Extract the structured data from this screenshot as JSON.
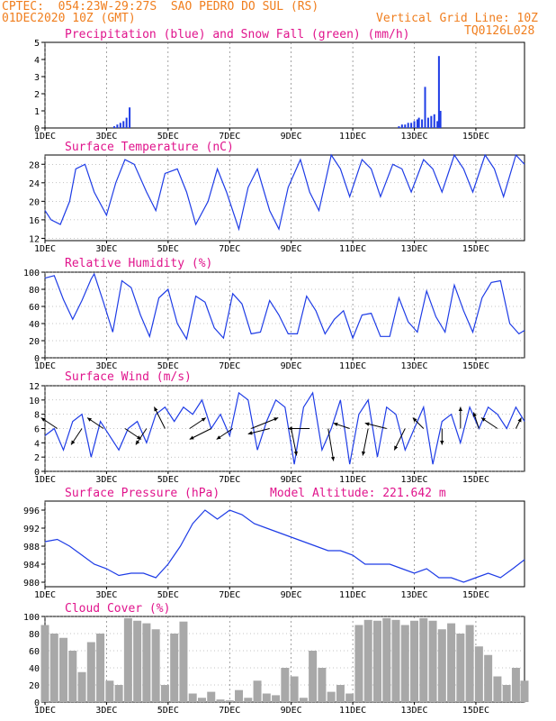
{
  "header": {
    "line1": "CPTEC:  054:23W-29:27S  SAO PEDRO DO SUL (RS)",
    "line2": "01DEC2020 10Z (GMT)",
    "grid_note": "Vertical Grid Line: 10Z",
    "code": "TQ0126L028"
  },
  "x_ticks": [
    "1DEC",
    "3DEC",
    "5DEC",
    "7DEC",
    "9DEC",
    "11DEC",
    "13DEC",
    "15DEC"
  ],
  "x_day_offsets": [
    0,
    2,
    4,
    6,
    8,
    10,
    12,
    14
  ],
  "x_range_days": [
    0,
    15.58
  ],
  "colors": {
    "line": "#1e3ce6",
    "precip": "#1e3ce6",
    "snow": "#00b400",
    "cloud": "#a8a8a8",
    "wind": "#000000",
    "title": "#e0148c",
    "header": "#f07e1e"
  },
  "chart_data": [
    {
      "type": "bar",
      "title": "Precipitation (blue) and Snow Fall (green) (mm/h)",
      "ylim": [
        0,
        5
      ],
      "yticks": [
        0,
        1,
        2,
        3,
        4,
        5
      ],
      "series": [
        {
          "name": "Precipitation",
          "x": [
            2.25,
            2.35,
            2.45,
            2.55,
            2.65,
            2.75,
            11.5,
            11.6,
            11.7,
            11.8,
            11.9,
            12.0,
            12.1,
            12.15,
            12.25,
            12.35,
            12.45,
            12.55,
            12.65,
            12.75,
            12.8,
            12.85
          ],
          "values": [
            0.1,
            0.2,
            0.3,
            0.4,
            0.6,
            1.2,
            0.1,
            0.2,
            0.2,
            0.3,
            0.3,
            0.4,
            0.5,
            0.6,
            0.5,
            2.4,
            0.6,
            0.7,
            0.8,
            0.4,
            4.2,
            1.0
          ]
        },
        {
          "name": "Snow Fall",
          "x": [],
          "values": []
        }
      ]
    },
    {
      "type": "line",
      "title": "Surface Temperature (nC)",
      "ylim": [
        11.5,
        30
      ],
      "yticks": [
        12,
        16,
        20,
        24,
        28
      ],
      "series": [
        {
          "x": [
            0,
            0.2,
            0.5,
            0.8,
            1.0,
            1.3,
            1.6,
            2.0,
            2.3,
            2.6,
            2.9,
            3.3,
            3.6,
            3.9,
            4.3,
            4.6,
            4.9,
            5.3,
            5.6,
            5.9,
            6.3,
            6.6,
            6.9,
            7.3,
            7.6,
            7.9,
            8.3,
            8.6,
            8.9,
            9.3,
            9.6,
            9.9,
            10.3,
            10.6,
            10.9,
            11.3,
            11.6,
            11.9,
            12.3,
            12.6,
            12.9,
            13.3,
            13.6,
            13.9,
            14.3,
            14.6,
            14.9,
            15.3,
            15.58
          ],
          "y": [
            18,
            16,
            15,
            20,
            27,
            28,
            22,
            17,
            24,
            29,
            28,
            22,
            18,
            26,
            27,
            22,
            15,
            20,
            27,
            22,
            14,
            23,
            27,
            18,
            14,
            23,
            29,
            22,
            18,
            30,
            27,
            21,
            29,
            27,
            21,
            28,
            27,
            22,
            29,
            27,
            22,
            30,
            27,
            22,
            30,
            27,
            21,
            30,
            28
          ]
        }
      ]
    },
    {
      "type": "line",
      "title": "Relative Humidity (%)",
      "ylim": [
        0,
        100
      ],
      "yticks": [
        0,
        20,
        40,
        60,
        80,
        100
      ],
      "series": [
        {
          "x": [
            0,
            0.3,
            0.6,
            0.9,
            1.2,
            1.5,
            1.6,
            1.9,
            2.2,
            2.5,
            2.8,
            3.1,
            3.4,
            3.7,
            4.0,
            4.3,
            4.6,
            4.9,
            5.2,
            5.5,
            5.8,
            6.1,
            6.4,
            6.7,
            7.0,
            7.3,
            7.6,
            7.9,
            8.2,
            8.5,
            8.8,
            9.1,
            9.4,
            9.7,
            10.0,
            10.3,
            10.6,
            10.9,
            11.2,
            11.5,
            11.8,
            12.1,
            12.4,
            12.7,
            13.0,
            13.3,
            13.6,
            13.9,
            14.2,
            14.5,
            14.8,
            15.1,
            15.4,
            15.58
          ],
          "y": [
            93,
            96,
            68,
            45,
            67,
            92,
            98,
            65,
            30,
            90,
            82,
            50,
            25,
            70,
            80,
            40,
            22,
            72,
            65,
            35,
            23,
            75,
            63,
            28,
            30,
            67,
            50,
            28,
            28,
            72,
            55,
            28,
            45,
            55,
            23,
            50,
            52,
            25,
            25,
            70,
            42,
            30,
            78,
            48,
            30,
            85,
            55,
            30,
            70,
            88,
            90,
            40,
            28,
            32
          ]
        }
      ]
    },
    {
      "type": "line",
      "title": "Surface Wind (m/s)",
      "ylim": [
        0,
        12
      ],
      "yticks": [
        0,
        2,
        4,
        6,
        8,
        10,
        12
      ],
      "series": [
        {
          "x": [
            0,
            0.3,
            0.6,
            0.9,
            1.2,
            1.5,
            1.8,
            2.1,
            2.4,
            2.7,
            3.0,
            3.3,
            3.6,
            3.9,
            4.2,
            4.5,
            4.8,
            5.1,
            5.4,
            5.7,
            6.0,
            6.3,
            6.6,
            6.9,
            7.2,
            7.5,
            7.8,
            8.1,
            8.4,
            8.7,
            9.0,
            9.3,
            9.6,
            9.9,
            10.2,
            10.5,
            10.8,
            11.1,
            11.4,
            11.7,
            12.0,
            12.3,
            12.6,
            12.9,
            13.2,
            13.5,
            13.8,
            14.1,
            14.4,
            14.7,
            15.0,
            15.3,
            15.58
          ],
          "y": [
            5,
            6,
            3,
            7,
            8,
            2,
            7,
            5,
            3,
            6,
            7,
            4,
            8,
            9,
            7,
            9,
            8,
            10,
            6,
            8,
            5,
            11,
            10,
            3,
            7,
            10,
            9,
            1,
            9,
            11,
            3,
            6,
            10,
            1,
            8,
            10,
            2,
            9,
            8,
            3,
            6,
            9,
            1,
            7,
            8,
            4,
            9,
            6,
            9,
            8,
            6,
            9,
            7
          ]
        }
      ],
      "arrows": [
        {
          "x": 0.4,
          "u": -3,
          "v": 2
        },
        {
          "x": 1.2,
          "u": -2,
          "v": -3
        },
        {
          "x": 1.9,
          "u": -3,
          "v": 2
        },
        {
          "x": 2.6,
          "u": 3,
          "v": -2
        },
        {
          "x": 3.3,
          "u": -2,
          "v": -3
        },
        {
          "x": 3.9,
          "u": -2,
          "v": 4
        },
        {
          "x": 4.7,
          "u": 3,
          "v": 2
        },
        {
          "x": 5.4,
          "u": -4,
          "v": -2
        },
        {
          "x": 6.1,
          "u": -3,
          "v": -2
        },
        {
          "x": 6.7,
          "u": 5,
          "v": 2
        },
        {
          "x": 7.3,
          "u": -4,
          "v": -1
        },
        {
          "x": 8.0,
          "u": 1,
          "v": -5
        },
        {
          "x": 8.6,
          "u": -4,
          "v": 0
        },
        {
          "x": 9.2,
          "u": 1,
          "v": -6
        },
        {
          "x": 9.9,
          "u": -3,
          "v": 1
        },
        {
          "x": 10.5,
          "u": -1,
          "v": -5
        },
        {
          "x": 11.1,
          "u": -4,
          "v": 1
        },
        {
          "x": 11.7,
          "u": -2,
          "v": -4
        },
        {
          "x": 12.3,
          "u": -2,
          "v": 2
        },
        {
          "x": 12.9,
          "u": 0,
          "v": -3
        },
        {
          "x": 13.5,
          "u": 0,
          "v": 4
        },
        {
          "x": 14.1,
          "u": -1,
          "v": 3
        },
        {
          "x": 14.7,
          "u": -3,
          "v": 2
        },
        {
          "x": 15.3,
          "u": 1,
          "v": 2
        }
      ]
    },
    {
      "type": "line",
      "title": "Surface Pressure (hPa)",
      "annotation": "Model Altitude: 221.642 m",
      "ylim": [
        979,
        998
      ],
      "yticks": [
        980,
        984,
        988,
        992,
        996
      ],
      "series": [
        {
          "x": [
            0,
            0.4,
            0.8,
            1.2,
            1.6,
            2.0,
            2.4,
            2.8,
            3.2,
            3.6,
            4.0,
            4.4,
            4.8,
            5.2,
            5.6,
            6.0,
            6.4,
            6.8,
            7.2,
            7.6,
            8.0,
            8.4,
            8.8,
            9.2,
            9.6,
            10.0,
            10.4,
            10.8,
            11.2,
            11.6,
            12.0,
            12.4,
            12.8,
            13.2,
            13.6,
            14.0,
            14.4,
            14.8,
            15.2,
            15.58
          ],
          "y": [
            989,
            989.5,
            988,
            986,
            984,
            983,
            981.5,
            982,
            982,
            981,
            984,
            988,
            993,
            996,
            994,
            996,
            995,
            993,
            992,
            991,
            990,
            989,
            988,
            987,
            987,
            986,
            984,
            984,
            984,
            983,
            982,
            983,
            981,
            981,
            980,
            981,
            982,
            981,
            983,
            985
          ]
        }
      ]
    },
    {
      "type": "bar",
      "title": "Cloud Cover (%)",
      "ylim": [
        0,
        100
      ],
      "yticks": [
        0,
        20,
        40,
        60,
        80,
        100
      ],
      "series": [
        {
          "x": [
            0,
            0.3,
            0.6,
            0.9,
            1.2,
            1.5,
            1.8,
            2.1,
            2.4,
            2.7,
            3.0,
            3.3,
            3.6,
            3.9,
            4.2,
            4.5,
            4.8,
            5.1,
            5.4,
            5.7,
            6.0,
            6.3,
            6.6,
            6.9,
            7.2,
            7.5,
            7.8,
            8.1,
            8.4,
            8.7,
            9.0,
            9.3,
            9.6,
            9.9,
            10.2,
            10.5,
            10.8,
            11.1,
            11.4,
            11.7,
            12.0,
            12.3,
            12.6,
            12.9,
            13.2,
            13.5,
            13.8,
            14.1,
            14.4,
            14.7,
            15.0,
            15.3,
            15.58
          ],
          "values": [
            90,
            80,
            75,
            60,
            35,
            70,
            80,
            25,
            20,
            98,
            95,
            92,
            85,
            20,
            80,
            94,
            10,
            5,
            12,
            3,
            2,
            14,
            5,
            25,
            10,
            8,
            40,
            30,
            5,
            60,
            40,
            12,
            20,
            10,
            90,
            96,
            95,
            98,
            96,
            90,
            95,
            98,
            95,
            85,
            92,
            80,
            90,
            65,
            55,
            30,
            20,
            40,
            25
          ]
        }
      ]
    }
  ]
}
